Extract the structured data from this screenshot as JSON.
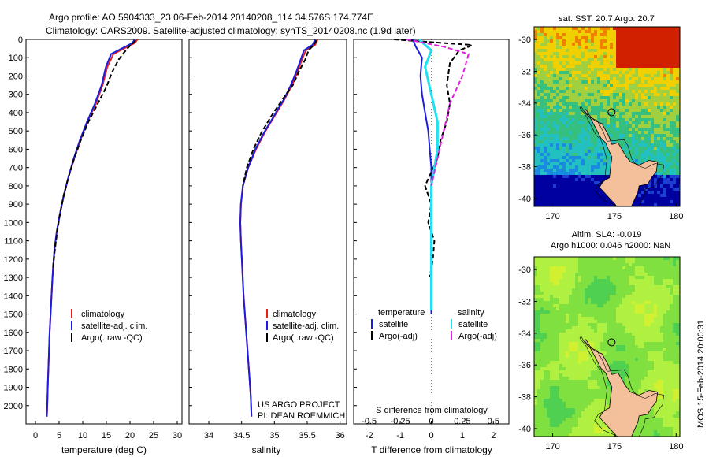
{
  "header": {
    "line1": "Argo profile: AO 5904333_23 06-Feb-2014 20140208_114 34.576S 174.774E",
    "line2": "Climatology: CARS2009. Satellite-adjusted climatology: synTS_20140208.nc (1.9d later)"
  },
  "colors": {
    "clim": "#e8201c",
    "sat": "#1c1cdc",
    "argo": "#000000",
    "cyan": "#22e0f0",
    "magenta": "#e020e0",
    "land": "#f4c09c"
  },
  "chart_data": [
    {
      "type": "line",
      "name": "temperature",
      "xlabel": "temperature (deg C)",
      "ylabel": "",
      "xlim": [
        -2,
        31
      ],
      "ylim": [
        0,
        2100
      ],
      "xticks": [
        0,
        5,
        10,
        15,
        20,
        25,
        30
      ],
      "yticks": [
        0,
        100,
        200,
        300,
        400,
        500,
        600,
        700,
        800,
        900,
        1000,
        1100,
        1200,
        1300,
        1400,
        1500,
        1600,
        1700,
        1800,
        1900,
        2000
      ],
      "legend": [
        "climatology",
        "satellite-adj. clim.",
        "Argo(..raw -QC)"
      ],
      "series": [
        {
          "name": "climatology",
          "style": "solid",
          "x": [
            21.6,
            21.0,
            19.5,
            16.5,
            15.2,
            14.2,
            12.8,
            11.0,
            9.5,
            8.2,
            7.0,
            6.0,
            5.2,
            4.5,
            4.0,
            3.6,
            3.3,
            3.0,
            2.8,
            2.6,
            2.5,
            2.4
          ],
          "y": [
            0,
            20,
            40,
            80,
            150,
            250,
            350,
            450,
            550,
            650,
            750,
            850,
            950,
            1050,
            1150,
            1300,
            1450,
            1600,
            1750,
            1900,
            2000,
            2060
          ]
        },
        {
          "name": "satellite",
          "style": "solid",
          "x": [
            21.0,
            20.5,
            19.0,
            16.0,
            14.9,
            14.0,
            12.6,
            10.9,
            9.4,
            8.1,
            7.0,
            6.0,
            5.2,
            4.5,
            4.0,
            3.6,
            3.3,
            3.0,
            2.8,
            2.6,
            2.5,
            2.4
          ],
          "y": [
            0,
            20,
            40,
            80,
            150,
            250,
            350,
            450,
            550,
            650,
            750,
            850,
            950,
            1050,
            1150,
            1300,
            1450,
            1600,
            1750,
            1900,
            2000,
            2060
          ]
        },
        {
          "name": "argo",
          "style": "dashed",
          "x": [
            21.2,
            20.7,
            19.8,
            18.8,
            17.6,
            16.2,
            15.0,
            13.2,
            11.2,
            9.6,
            8.2,
            7.0,
            6.0,
            5.2,
            4.6,
            4.1,
            3.7
          ],
          "y": [
            5,
            20,
            40,
            70,
            110,
            180,
            260,
            350,
            450,
            550,
            650,
            750,
            850,
            950,
            1050,
            1150,
            1250
          ]
        }
      ]
    },
    {
      "type": "line",
      "name": "salinity",
      "xlabel": "salinity",
      "xlim": [
        33.7,
        36.1
      ],
      "ylim": [
        0,
        2100
      ],
      "xticks": [
        34,
        34.5,
        35,
        35.5,
        36
      ],
      "legend": [
        "climatology",
        "satellite-adj. clim.",
        "Argo(..raw -QC)"
      ],
      "annotation": [
        "US ARGO PROJECT",
        "PI: DEAN ROEMMICH"
      ],
      "series": [
        {
          "name": "climatology",
          "style": "solid",
          "x": [
            35.66,
            35.62,
            35.48,
            35.42,
            35.36,
            35.27,
            35.15,
            35.0,
            34.85,
            34.72,
            34.6,
            34.52,
            34.49,
            34.48,
            34.49,
            34.51,
            34.53,
            34.56,
            34.59,
            34.62,
            34.64,
            34.65
          ],
          "y": [
            0,
            30,
            60,
            110,
            170,
            250,
            330,
            420,
            510,
            600,
            700,
            800,
            900,
            1000,
            1100,
            1250,
            1400,
            1550,
            1700,
            1850,
            1950,
            2060
          ]
        },
        {
          "name": "satellite",
          "style": "solid",
          "x": [
            35.62,
            35.58,
            35.45,
            35.4,
            35.34,
            35.25,
            35.14,
            34.99,
            34.84,
            34.71,
            34.6,
            34.52,
            34.49,
            34.48,
            34.49,
            34.51,
            34.53,
            34.56,
            34.59,
            34.62,
            34.64,
            34.65
          ],
          "y": [
            0,
            30,
            60,
            110,
            170,
            250,
            330,
            420,
            510,
            600,
            700,
            800,
            900,
            1000,
            1100,
            1250,
            1400,
            1550,
            1700,
            1850,
            1950,
            2060
          ]
        },
        {
          "name": "argo",
          "style": "dashed",
          "x": [
            35.64,
            35.6,
            35.52,
            35.47,
            35.38,
            35.28,
            35.12,
            34.95,
            34.8,
            34.68,
            34.58,
            34.52
          ],
          "y": [
            5,
            30,
            60,
            110,
            170,
            250,
            330,
            420,
            510,
            600,
            700,
            800
          ]
        }
      ]
    },
    {
      "type": "line",
      "name": "differences",
      "xlabel": "T difference from climatology",
      "xlabel_top": "S difference from climatology",
      "xlim": [
        -2.5,
        2.5
      ],
      "ylim": [
        0,
        2100
      ],
      "xticks": [
        -2,
        -1,
        0,
        1,
        2
      ],
      "xticks_top": [
        -0.5,
        -0.25,
        0,
        0.25,
        0.5
      ],
      "legend_t_title": "temperature",
      "legend_s_title": "salinity",
      "legend": [
        "satellite",
        "Argo(-adj)",
        "satellite",
        "Argo(-adj)"
      ],
      "series": [
        {
          "name": "T satellite",
          "style": "solid",
          "color": "blue",
          "x": [
            -0.6,
            -0.5,
            -0.3,
            -0.35,
            -0.3,
            -0.2,
            -0.1,
            -0.05,
            0,
            0,
            0,
            0,
            0,
            0,
            0
          ],
          "y": [
            0,
            40,
            100,
            200,
            300,
            400,
            500,
            600,
            700,
            800,
            1000,
            1200,
            1400,
            1450,
            1500
          ]
        },
        {
          "name": "T argo",
          "style": "dashed",
          "color": "black",
          "x": [
            -1.2,
            0.4,
            1.3,
            1.2,
            0.9,
            0.6,
            0.5,
            0.6,
            0.5,
            0.3,
            0.2,
            -0.2,
            0,
            -0.1,
            0.1,
            0.05,
            -0.05
          ],
          "y": [
            0,
            20,
            30,
            40,
            60,
            130,
            250,
            350,
            450,
            550,
            650,
            800,
            900,
            1000,
            1100,
            1200,
            1300
          ]
        },
        {
          "name": "S satellite",
          "style": "solid",
          "color": "cyan",
          "x": [
            -0.1,
            0,
            -0.05,
            0,
            0.05,
            0.05,
            0,
            0,
            0,
            0
          ],
          "y": [
            0,
            60,
            150,
            300,
            450,
            600,
            800,
            1000,
            1300,
            1480
          ]
        },
        {
          "name": "S argo",
          "style": "dashed",
          "color": "magenta",
          "x": [
            -0.2,
            0.1,
            0.3,
            0.25,
            0.15,
            0.1,
            0.05,
            0
          ],
          "y": [
            0,
            40,
            80,
            200,
            350,
            500,
            650,
            800
          ]
        }
      ]
    },
    {
      "type": "heatmap",
      "name": "sst-map",
      "title": "sat. SST: 20.7 Argo: 20.7",
      "xlim": [
        168.5,
        180.3
      ],
      "ylim": [
        -40.5,
        -29.2
      ],
      "xticks": [
        170,
        175,
        180
      ],
      "yticks": [
        -30,
        -32,
        -34,
        -36,
        -38,
        -40
      ],
      "marker": [
        174.774,
        -34.576
      ]
    },
    {
      "type": "heatmap",
      "name": "sla-map",
      "title_line1": "Altim. SLA: -0.019",
      "title_line2": "Argo h1000: 0.046 h2000: NaN",
      "xlim": [
        168.5,
        180.3
      ],
      "ylim": [
        -40.5,
        -29.2
      ],
      "xticks": [
        170,
        175,
        180
      ],
      "yticks": [
        -30,
        -32,
        -34,
        -36,
        -38,
        -40
      ],
      "marker": [
        174.774,
        -34.576
      ]
    }
  ],
  "footer": {
    "imos": "IMOS 15-Feb-2014 20:00:31"
  }
}
